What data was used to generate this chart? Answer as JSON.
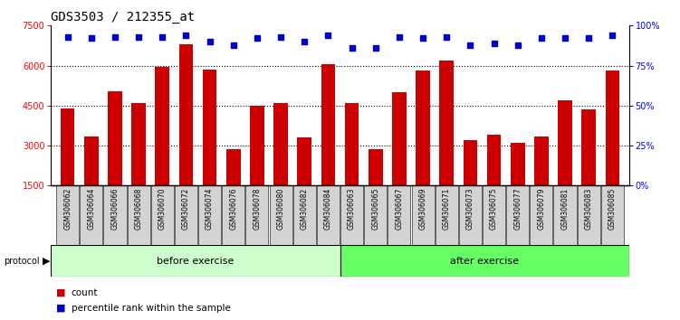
{
  "title": "GDS3503 / 212355_at",
  "categories": [
    "GSM306062",
    "GSM306064",
    "GSM306066",
    "GSM306068",
    "GSM306070",
    "GSM306072",
    "GSM306074",
    "GSM306076",
    "GSM306078",
    "GSM306080",
    "GSM306082",
    "GSM306084",
    "GSM306063",
    "GSM306065",
    "GSM306067",
    "GSM306069",
    "GSM306071",
    "GSM306073",
    "GSM306075",
    "GSM306077",
    "GSM306079",
    "GSM306081",
    "GSM306083",
    "GSM306085"
  ],
  "counts": [
    4400,
    3350,
    5050,
    4600,
    5950,
    6800,
    5850,
    2850,
    4500,
    4600,
    3300,
    6050,
    4600,
    2850,
    5000,
    5800,
    6200,
    3200,
    3400,
    3100,
    3350,
    4700,
    4350,
    5800
  ],
  "percentile_ranks": [
    93,
    92,
    93,
    93,
    93,
    94,
    90,
    88,
    92,
    93,
    90,
    94,
    86,
    86,
    93,
    92,
    93,
    88,
    89,
    88,
    92,
    92,
    92,
    94
  ],
  "before_count": 12,
  "after_count": 12,
  "ylim_left": [
    1500,
    7500
  ],
  "ylim_right": [
    0,
    100
  ],
  "yticks_left": [
    1500,
    3000,
    4500,
    6000,
    7500
  ],
  "yticks_right": [
    0,
    25,
    50,
    75,
    100
  ],
  "bar_color": "#cc0000",
  "dot_color": "#0000cc",
  "before_color": "#ccffcc",
  "after_color": "#66ff66",
  "grid_dotted_at": [
    3000,
    4500,
    6000
  ],
  "label_bg_color": "#d3d3d3",
  "title_fontsize": 10,
  "tick_fontsize": 7,
  "label_fontsize": 5.5,
  "protocol_fontsize": 8,
  "legend_fontsize": 7.5
}
